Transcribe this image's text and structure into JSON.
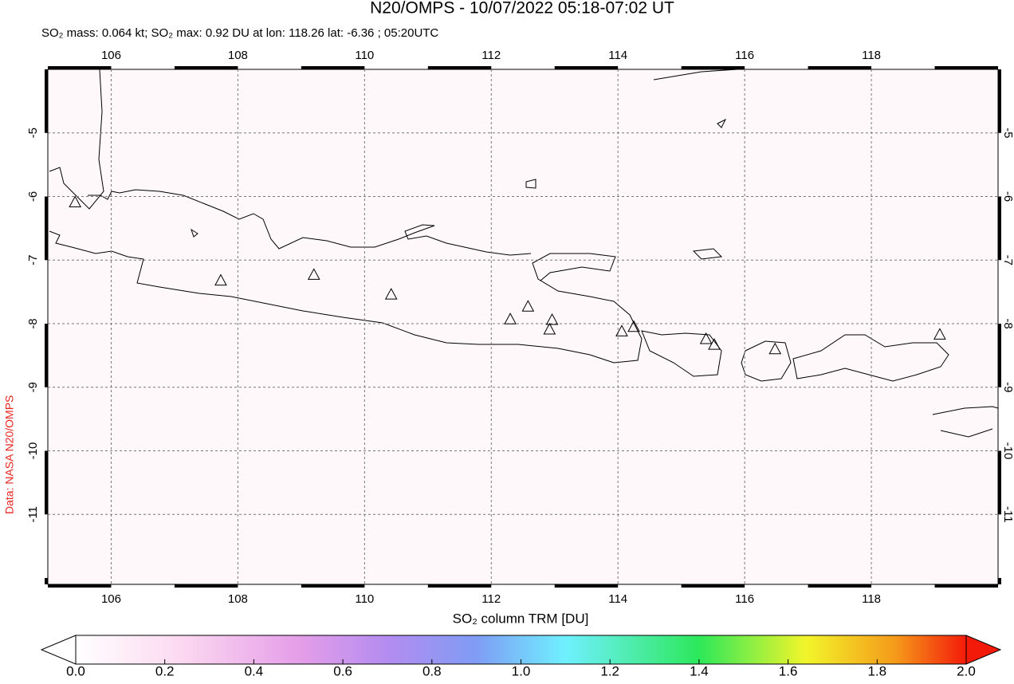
{
  "chart_data": {
    "type": "map",
    "title": "N20/OMPS - 10/07/2022 05:18-07:02 UT",
    "subtitle": "SO₂ mass: 0.064 kt; SO₂ max: 0.92 DU at lon: 118.26 lat: -6.36 ; 05:20UTC",
    "credit": "Data: NASA N20/OMPS",
    "xlim": [
      105,
      120
    ],
    "ylim": [
      -12.1,
      -4
    ],
    "xticks": [
      106,
      108,
      110,
      112,
      114,
      116,
      118
    ],
    "yticks": [
      -5,
      -6,
      -7,
      -8,
      -9,
      -10,
      -11
    ],
    "grid": true,
    "volcanoes": {
      "x": [
        105.43,
        107.73,
        109.2,
        110.42,
        112.3,
        112.58,
        112.96,
        112.92,
        114.06,
        114.25,
        115.39,
        115.52,
        116.48,
        119.08
      ],
      "y": [
        -6.1,
        -7.33,
        -7.24,
        -7.55,
        -7.94,
        -7.74,
        -7.95,
        -8.1,
        -8.13,
        -8.06,
        -8.25,
        -8.34,
        -8.41,
        -8.18
      ]
    },
    "colorbar": {
      "label": "SO₂ column TRM [DU]",
      "lim": [
        0,
        2
      ],
      "ticks": [
        {
          "value": 0,
          "label": "0.0"
        },
        0.2,
        0.4,
        0.6,
        0.8,
        {
          "value": 1,
          "label": "1.0"
        },
        1.2,
        1.4,
        1.6,
        1.8,
        {
          "value": 2,
          "label": "2.0"
        }
      ]
    }
  }
}
